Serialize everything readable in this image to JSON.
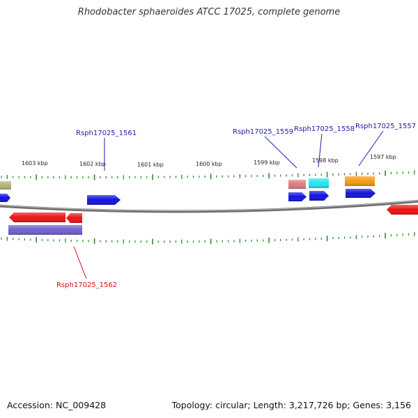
{
  "header": {
    "title": "Rhodobacter sphaeroides ATCC 17025, complete genome"
  },
  "footer": {
    "accession": "Accession: NC_009428",
    "summary": "Topology: circular; Length: 3,217,726 bp; Genes: 3,156"
  },
  "ruler": {
    "unit": "kbp",
    "tick_labels": [
      "1603 kbp",
      "1602 kbp",
      "1601 kbp",
      "1600 kbp",
      "1599 kbp",
      "1598 kbp",
      "1597 kbp"
    ]
  },
  "colors": {
    "backbone": "#777777",
    "tick": "#2e8b2e",
    "label_forward": "#1a1aa8",
    "label_reverse": "#cc1111",
    "gene_blue": "#1010e0",
    "gene_red": "#ee1111",
    "gene_purple": "#6f5fcf",
    "gene_olive": "#b2b07a",
    "gene_pink": "#df7a80",
    "gene_cyan": "#22e6ee",
    "gene_orange": "#f59a10"
  },
  "gene_labels": [
    {
      "id": "rsph-1561",
      "text": "Rsph17025_1561",
      "strand": "forward"
    },
    {
      "id": "rsph-1559",
      "text": "Rsph17025_1559",
      "strand": "forward"
    },
    {
      "id": "rsph-1558",
      "text": "Rsph17025_1558",
      "strand": "forward"
    },
    {
      "id": "rsph-1557",
      "text": "Rsph17025_1557",
      "strand": "forward"
    },
    {
      "id": "rsph-1562",
      "text": "Rsph17025_1562",
      "strand": "reverse"
    }
  ]
}
